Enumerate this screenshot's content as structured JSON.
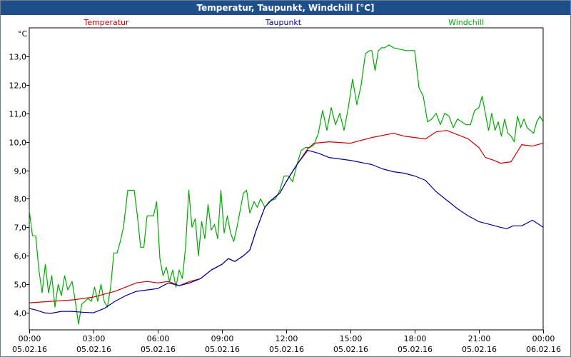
{
  "window": {
    "title": "Temperatur, Taupunkt, Windchill [°C]"
  },
  "chart_data": {
    "type": "line",
    "title": "Temperatur, Taupunkt, Windchill [°C]",
    "y_unit": "°C",
    "ylim": [
      3.4,
      14.0
    ],
    "xlim": [
      "05.02.16 00:00",
      "06.02.16 00:00"
    ],
    "grid": true,
    "legend_position": "top",
    "y_ticks": [
      "4,0",
      "5,0",
      "6,0",
      "7,0",
      "8,0",
      "9,0",
      "10,0",
      "11,0",
      "12,0",
      "13,0"
    ],
    "x_ticks": [
      {
        "time": "00:00",
        "date": "05.02.16"
      },
      {
        "time": "03:00",
        "date": "05.02.16"
      },
      {
        "time": "06:00",
        "date": "05.02.16"
      },
      {
        "time": "09:00",
        "date": "05.02.16"
      },
      {
        "time": "12:00",
        "date": "05.02.16"
      },
      {
        "time": "15:00",
        "date": "05.02.16"
      },
      {
        "time": "18:00",
        "date": "05.02.16"
      },
      {
        "time": "21:00",
        "date": "05.02.16"
      },
      {
        "time": "00:00",
        "date": "06.02.16"
      }
    ],
    "series": [
      {
        "name": "Temperatur",
        "color": "#cc0000",
        "points": [
          [
            0,
            4.35
          ],
          [
            1,
            4.4
          ],
          [
            2,
            4.45
          ],
          [
            3,
            4.55
          ],
          [
            4,
            4.75
          ],
          [
            5,
            5.05
          ],
          [
            5.5,
            5.1
          ],
          [
            6,
            5.05
          ],
          [
            6.5,
            5.1
          ],
          [
            7,
            4.95
          ],
          [
            7.5,
            5.1
          ],
          [
            8,
            5.2
          ],
          [
            8.5,
            5.5
          ],
          [
            9,
            5.7
          ],
          [
            9.3,
            5.9
          ],
          [
            9.6,
            5.8
          ],
          [
            10,
            6.0
          ],
          [
            10.3,
            6.2
          ],
          [
            10.6,
            6.9
          ],
          [
            11,
            7.7
          ],
          [
            11.3,
            7.95
          ],
          [
            11.7,
            8.2
          ],
          [
            12,
            8.6
          ],
          [
            12.5,
            9.2
          ],
          [
            13,
            9.75
          ],
          [
            13.3,
            9.95
          ],
          [
            14,
            10.0
          ],
          [
            15,
            9.95
          ],
          [
            16,
            10.15
          ],
          [
            17,
            10.3
          ],
          [
            17.5,
            10.2
          ],
          [
            18,
            10.15
          ],
          [
            18.5,
            10.1
          ],
          [
            19,
            10.35
          ],
          [
            19.5,
            10.4
          ],
          [
            20,
            10.25
          ],
          [
            20.5,
            10.1
          ],
          [
            21,
            9.8
          ],
          [
            21.3,
            9.45
          ],
          [
            21.7,
            9.35
          ],
          [
            22,
            9.25
          ],
          [
            22.5,
            9.3
          ],
          [
            23,
            9.9
          ],
          [
            23.5,
            9.85
          ],
          [
            24,
            9.95
          ]
        ]
      },
      {
        "name": "Taupunkt",
        "color": "#000099",
        "points": [
          [
            0,
            4.15
          ],
          [
            0.3,
            4.1
          ],
          [
            0.7,
            4.0
          ],
          [
            1,
            3.98
          ],
          [
            1.5,
            4.05
          ],
          [
            2,
            4.05
          ],
          [
            2.5,
            4.02
          ],
          [
            3,
            4.0
          ],
          [
            3.5,
            4.15
          ],
          [
            4,
            4.4
          ],
          [
            4.5,
            4.6
          ],
          [
            5,
            4.75
          ],
          [
            5.5,
            4.8
          ],
          [
            6,
            4.85
          ],
          [
            6.5,
            5.05
          ],
          [
            7,
            4.95
          ],
          [
            7.5,
            5.05
          ],
          [
            8,
            5.2
          ],
          [
            8.5,
            5.5
          ],
          [
            9,
            5.7
          ],
          [
            9.3,
            5.9
          ],
          [
            9.6,
            5.8
          ],
          [
            10,
            6.0
          ],
          [
            10.3,
            6.2
          ],
          [
            10.6,
            6.9
          ],
          [
            11,
            7.7
          ],
          [
            11.3,
            7.95
          ],
          [
            11.7,
            8.2
          ],
          [
            12,
            8.6
          ],
          [
            12.5,
            9.2
          ],
          [
            13,
            9.7
          ],
          [
            13.5,
            9.6
          ],
          [
            14,
            9.45
          ],
          [
            15,
            9.35
          ],
          [
            16,
            9.2
          ],
          [
            16.5,
            9.05
          ],
          [
            17,
            8.95
          ],
          [
            17.5,
            8.9
          ],
          [
            18,
            8.8
          ],
          [
            18.5,
            8.65
          ],
          [
            19,
            8.25
          ],
          [
            19.5,
            7.95
          ],
          [
            20,
            7.65
          ],
          [
            20.5,
            7.4
          ],
          [
            21,
            7.2
          ],
          [
            21.5,
            7.1
          ],
          [
            22,
            7.0
          ],
          [
            22.3,
            6.95
          ],
          [
            22.6,
            7.05
          ],
          [
            23,
            7.05
          ],
          [
            23.5,
            7.25
          ],
          [
            24,
            7.0
          ]
        ]
      },
      {
        "name": "Windchill",
        "color": "#00aa00",
        "points": [
          [
            0,
            7.6
          ],
          [
            0.15,
            6.7
          ],
          [
            0.3,
            6.7
          ],
          [
            0.45,
            5.5
          ],
          [
            0.6,
            4.7
          ],
          [
            0.75,
            5.7
          ],
          [
            0.9,
            4.7
          ],
          [
            1.05,
            5.3
          ],
          [
            1.2,
            4.2
          ],
          [
            1.35,
            5.0
          ],
          [
            1.5,
            4.6
          ],
          [
            1.65,
            5.3
          ],
          [
            1.8,
            4.8
          ],
          [
            2,
            5.1
          ],
          [
            2.15,
            4.4
          ],
          [
            2.3,
            3.6
          ],
          [
            2.45,
            4.3
          ],
          [
            2.6,
            4.4
          ],
          [
            2.75,
            4.5
          ],
          [
            2.9,
            4.4
          ],
          [
            3.05,
            4.9
          ],
          [
            3.2,
            4.4
          ],
          [
            3.35,
            5.0
          ],
          [
            3.5,
            4.4
          ],
          [
            3.65,
            4.2
          ],
          [
            3.8,
            4.9
          ],
          [
            3.95,
            6.1
          ],
          [
            4.1,
            6.1
          ],
          [
            4.25,
            6.5
          ],
          [
            4.4,
            7.0
          ],
          [
            4.6,
            8.3
          ],
          [
            4.75,
            8.3
          ],
          [
            4.9,
            8.3
          ],
          [
            5.05,
            7.4
          ],
          [
            5.2,
            6.3
          ],
          [
            5.35,
            6.3
          ],
          [
            5.5,
            7.4
          ],
          [
            5.65,
            7.4
          ],
          [
            5.8,
            7.4
          ],
          [
            5.95,
            7.9
          ],
          [
            6.1,
            5.9
          ],
          [
            6.25,
            5.3
          ],
          [
            6.4,
            5.6
          ],
          [
            6.55,
            5.1
          ],
          [
            6.7,
            5.5
          ],
          [
            6.85,
            4.9
          ],
          [
            7.0,
            5.5
          ],
          [
            7.15,
            5.2
          ],
          [
            7.3,
            6.3
          ],
          [
            7.45,
            8.3
          ],
          [
            7.6,
            7.0
          ],
          [
            7.75,
            7.3
          ],
          [
            7.9,
            6.0
          ],
          [
            8.05,
            7.2
          ],
          [
            8.2,
            6.6
          ],
          [
            8.35,
            7.8
          ],
          [
            8.5,
            6.9
          ],
          [
            8.65,
            7.1
          ],
          [
            8.8,
            6.6
          ],
          [
            8.95,
            8.3
          ],
          [
            9.1,
            6.8
          ],
          [
            9.25,
            7.4
          ],
          [
            9.4,
            6.8
          ],
          [
            9.55,
            6.5
          ],
          [
            9.7,
            7.0
          ],
          [
            9.85,
            7.6
          ],
          [
            10.0,
            8.2
          ],
          [
            10.15,
            8.3
          ],
          [
            10.3,
            7.5
          ],
          [
            10.5,
            7.9
          ],
          [
            10.65,
            7.7
          ],
          [
            10.8,
            8.0
          ],
          [
            11.0,
            7.7
          ],
          [
            11.2,
            7.9
          ],
          [
            11.5,
            8.0
          ],
          [
            11.7,
            8.3
          ],
          [
            11.9,
            8.8
          ],
          [
            12.1,
            8.8
          ],
          [
            12.3,
            8.6
          ],
          [
            12.5,
            9.2
          ],
          [
            12.7,
            9.7
          ],
          [
            12.9,
            9.8
          ],
          [
            13.1,
            9.8
          ],
          [
            13.3,
            9.9
          ],
          [
            13.5,
            10.3
          ],
          [
            13.7,
            11.1
          ],
          [
            13.9,
            10.4
          ],
          [
            14.1,
            11.2
          ],
          [
            14.3,
            10.6
          ],
          [
            14.5,
            11.0
          ],
          [
            14.7,
            10.4
          ],
          [
            14.9,
            11.2
          ],
          [
            15.1,
            12.2
          ],
          [
            15.3,
            11.3
          ],
          [
            15.5,
            12.0
          ],
          [
            15.7,
            13.1
          ],
          [
            15.9,
            13.2
          ],
          [
            16.0,
            13.2
          ],
          [
            16.15,
            12.5
          ],
          [
            16.3,
            13.2
          ],
          [
            16.45,
            13.3
          ],
          [
            16.6,
            13.3
          ],
          [
            16.8,
            13.4
          ],
          [
            17.0,
            13.3
          ],
          [
            17.3,
            13.25
          ],
          [
            17.6,
            13.2
          ],
          [
            18.0,
            13.2
          ],
          [
            18.2,
            11.9
          ],
          [
            18.4,
            11.6
          ],
          [
            18.6,
            10.7
          ],
          [
            18.8,
            10.8
          ],
          [
            19.0,
            11.0
          ],
          [
            19.2,
            10.6
          ],
          [
            19.4,
            11.0
          ],
          [
            19.6,
            10.9
          ],
          [
            19.8,
            10.5
          ],
          [
            20.0,
            10.8
          ],
          [
            20.2,
            10.7
          ],
          [
            20.4,
            10.6
          ],
          [
            20.6,
            10.6
          ],
          [
            20.8,
            11.1
          ],
          [
            21.0,
            11.2
          ],
          [
            21.15,
            11.6
          ],
          [
            21.3,
            11.0
          ],
          [
            21.45,
            10.4
          ],
          [
            21.6,
            11.0
          ],
          [
            21.75,
            10.4
          ],
          [
            21.9,
            10.7
          ],
          [
            22.05,
            10.2
          ],
          [
            22.2,
            10.8
          ],
          [
            22.35,
            10.3
          ],
          [
            22.5,
            10.2
          ],
          [
            22.65,
            10.0
          ],
          [
            22.8,
            10.9
          ],
          [
            22.95,
            10.5
          ],
          [
            23.1,
            10.8
          ],
          [
            23.25,
            10.5
          ],
          [
            23.4,
            10.4
          ],
          [
            23.55,
            10.3
          ],
          [
            23.7,
            10.7
          ],
          [
            23.85,
            10.9
          ],
          [
            24.0,
            10.7
          ]
        ]
      }
    ]
  }
}
